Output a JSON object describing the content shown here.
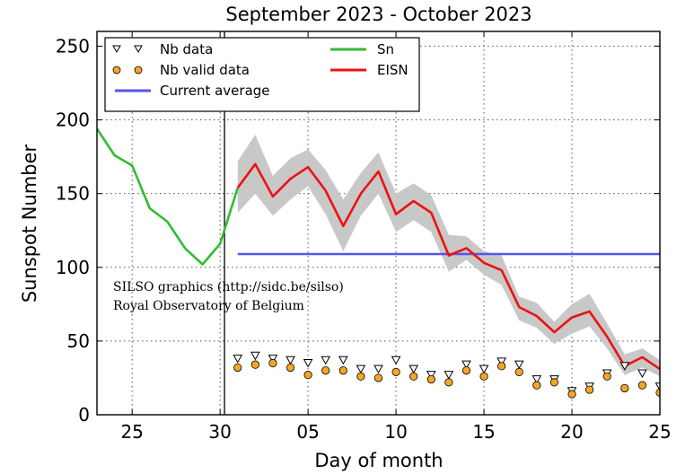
{
  "chart_data": {
    "type": "line",
    "title": "September 2023 - October 2023",
    "xlabel": "Day of month",
    "ylabel": "Sunspot Number",
    "xlim": [
      23,
      55
    ],
    "ylim": [
      0,
      260
    ],
    "grid": true,
    "legend_position": "top-left",
    "x_ticks": [
      {
        "x": 25,
        "label": "25"
      },
      {
        "x": 30,
        "label": "30"
      },
      {
        "x": 35,
        "label": "05"
      },
      {
        "x": 40,
        "label": "10"
      },
      {
        "x": 45,
        "label": "15"
      },
      {
        "x": 50,
        "label": "20"
      },
      {
        "x": 55,
        "label": "25"
      }
    ],
    "y_ticks": [
      0,
      50,
      100,
      150,
      200,
      250
    ],
    "vertical_marker_x": 30.25,
    "annotation_lines": [
      "SILSO graphics (http://sidc.be/silso)",
      "Royal Observatory of Belgium"
    ],
    "legend_entries": [
      {
        "label": "Nb data",
        "kind": "triangle-marker"
      },
      {
        "label": "Nb valid data",
        "kind": "circle-marker"
      },
      {
        "label": "Current average",
        "kind": "line",
        "color": "#5555ee"
      },
      {
        "label": "Sn",
        "kind": "line",
        "color": "#33bb33"
      },
      {
        "label": "EISN",
        "kind": "line",
        "color": "#ee1111"
      }
    ],
    "series": [
      {
        "name": "Sn",
        "color": "#33bb33",
        "x": [
          23,
          24,
          25,
          26,
          27,
          28,
          29,
          30,
          31
        ],
        "y": [
          194,
          176,
          169,
          140,
          131,
          113,
          102,
          116,
          154
        ]
      },
      {
        "name": "EISN",
        "color": "#ee1111",
        "x": [
          31,
          32,
          33,
          34,
          35,
          36,
          37,
          38,
          39,
          40,
          41,
          42,
          43,
          44,
          45,
          46,
          47,
          48,
          49,
          50,
          51,
          52,
          53,
          54,
          55
        ],
        "y": [
          154,
          170,
          148,
          160,
          168,
          152,
          128,
          150,
          165,
          136,
          145,
          137,
          108,
          113,
          103,
          98,
          73,
          67,
          56,
          66,
          70,
          53,
          33,
          39,
          31
        ]
      },
      {
        "name": "Current average",
        "color": "#5555ee",
        "x": [
          31,
          55
        ],
        "y": [
          109,
          109
        ]
      },
      {
        "name": "EISN band",
        "color": "#cccccc",
        "x": [
          31,
          32,
          33,
          34,
          35,
          36,
          37,
          38,
          39,
          40,
          41,
          42,
          43,
          44,
          45,
          46,
          47,
          48,
          49,
          50,
          51,
          52,
          53,
          54,
          55
        ],
        "upper": [
          172,
          190,
          162,
          174,
          180,
          166,
          146,
          164,
          178,
          150,
          157,
          149,
          122,
          121,
          111,
          108,
          80,
          76,
          63,
          75,
          82,
          62,
          41,
          45,
          37
        ],
        "lower": [
          137,
          150,
          135,
          146,
          155,
          136,
          111,
          135,
          150,
          124,
          132,
          124,
          97,
          105,
          95,
          88,
          64,
          59,
          48,
          55,
          60,
          45,
          27,
          32,
          26
        ]
      },
      {
        "name": "Nb data",
        "x": [
          31,
          32,
          33,
          34,
          35,
          36,
          37,
          38,
          39,
          40,
          41,
          42,
          43,
          44,
          45,
          46,
          47,
          48,
          49,
          50,
          51,
          52,
          53,
          54,
          55
        ],
        "y": [
          38,
          40,
          38,
          37,
          35,
          37,
          37,
          31,
          31,
          37,
          31,
          27,
          27,
          34,
          31,
          36,
          34,
          24,
          24,
          16,
          19,
          28,
          33,
          28,
          19
        ]
      },
      {
        "name": "Nb valid data",
        "x": [
          31,
          32,
          33,
          34,
          35,
          36,
          37,
          38,
          39,
          40,
          41,
          42,
          43,
          44,
          45,
          46,
          47,
          48,
          49,
          50,
          51,
          52,
          53,
          54,
          55
        ],
        "y": [
          32,
          34,
          35,
          32,
          27,
          30,
          30,
          26,
          25,
          29,
          26,
          24,
          22,
          30,
          26,
          33,
          29,
          20,
          22,
          14,
          17,
          26,
          18,
          20,
          15
        ]
      }
    ]
  }
}
